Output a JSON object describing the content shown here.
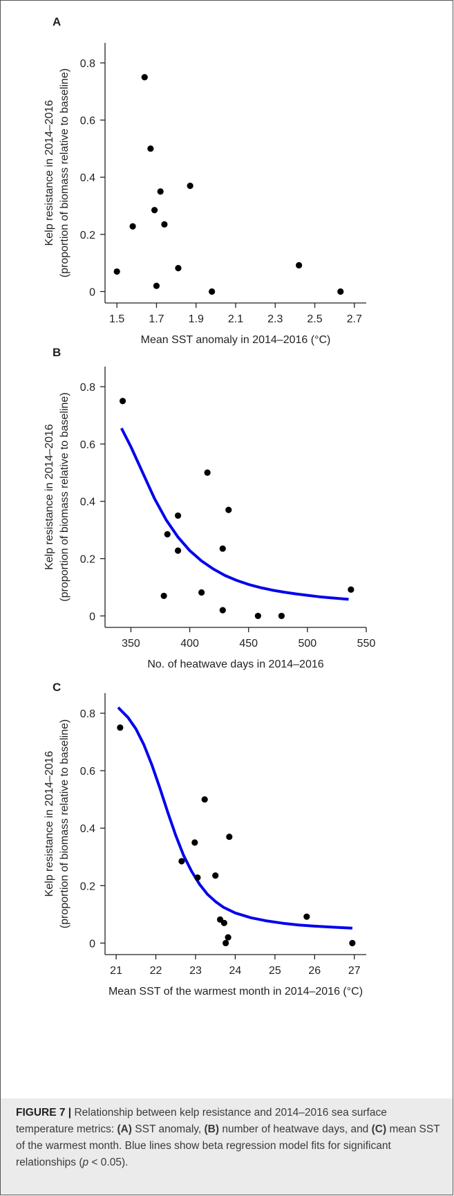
{
  "chart_data": [
    {
      "panel": "A",
      "type": "scatter",
      "xlabel": "Mean SST anomaly in 2014–2016 (°C)",
      "ylabel_lines": [
        "Kelp resistance in 2014–2016",
        "(proportion of biomass relative to baseline)"
      ],
      "xlim": [
        1.44,
        2.76
      ],
      "ylim": [
        -0.04,
        0.87
      ],
      "xticks": [
        1.5,
        1.7,
        1.9,
        2.1,
        2.3,
        2.5,
        2.7
      ],
      "xtick_labels": [
        "1.5",
        "1.7",
        "1.9",
        "2.1",
        "2.3",
        "2.5",
        "2.7"
      ],
      "yticks": [
        0,
        0.2,
        0.4,
        0.6,
        0.8
      ],
      "ytick_labels": [
        "0",
        "0.2",
        "0.4",
        "0.6",
        "0.8"
      ],
      "points": [
        [
          1.64,
          0.75
        ],
        [
          1.67,
          0.5
        ],
        [
          1.72,
          0.35
        ],
        [
          1.87,
          0.37
        ],
        [
          1.69,
          0.285
        ],
        [
          1.58,
          0.228
        ],
        [
          1.74,
          0.235
        ],
        [
          1.5,
          0.07
        ],
        [
          1.81,
          0.082
        ],
        [
          1.7,
          0.02
        ],
        [
          1.98,
          0.0
        ],
        [
          2.42,
          0.092
        ],
        [
          2.63,
          0.0
        ]
      ],
      "fit": null
    },
    {
      "panel": "B",
      "type": "scatter",
      "xlabel": "No. of heatwave days in 2014–2016",
      "ylabel_lines": [
        "Kelp resistance in 2014–2016",
        "(proportion of biomass relative to baseline)"
      ],
      "xlim": [
        328,
        550
      ],
      "ylim": [
        -0.04,
        0.87
      ],
      "xticks": [
        350,
        400,
        450,
        500,
        550
      ],
      "xtick_labels": [
        "350",
        "400",
        "450",
        "500",
        "550"
      ],
      "yticks": [
        0,
        0.2,
        0.4,
        0.6,
        0.8
      ],
      "ytick_labels": [
        "0",
        "0.2",
        "0.4",
        "0.6",
        "0.8"
      ],
      "points": [
        [
          343,
          0.75
        ],
        [
          415,
          0.5
        ],
        [
          433,
          0.37
        ],
        [
          390,
          0.35
        ],
        [
          381,
          0.285
        ],
        [
          390,
          0.228
        ],
        [
          428,
          0.235
        ],
        [
          378,
          0.07
        ],
        [
          410,
          0.082
        ],
        [
          428,
          0.02
        ],
        [
          458,
          0.0
        ],
        [
          478,
          0.0
        ],
        [
          537,
          0.092
        ]
      ],
      "fit": {
        "label": "beta regression model fit",
        "x": [
          342,
          350,
          360,
          370,
          380,
          390,
          400,
          410,
          420,
          430,
          440,
          450,
          460,
          470,
          480,
          490,
          500,
          510,
          520,
          535
        ],
        "y": [
          0.655,
          0.59,
          0.5,
          0.41,
          0.335,
          0.275,
          0.228,
          0.192,
          0.164,
          0.141,
          0.124,
          0.11,
          0.099,
          0.09,
          0.083,
          0.077,
          0.072,
          0.067,
          0.063,
          0.058
        ]
      }
    },
    {
      "panel": "C",
      "type": "scatter",
      "xlabel": "Mean SST of the warmest month in 2014–2016 (°C)",
      "ylabel_lines": [
        "Kelp resistance in 2014–2016",
        "(proportion of biomass relative to baseline)"
      ],
      "xlim": [
        20.72,
        27.3
      ],
      "ylim": [
        -0.04,
        0.87
      ],
      "xticks": [
        21,
        22,
        23,
        24,
        25,
        26,
        27
      ],
      "xtick_labels": [
        "21",
        "22",
        "23",
        "24",
        "25",
        "26",
        "27"
      ],
      "yticks": [
        0,
        0.2,
        0.4,
        0.6,
        0.8
      ],
      "ytick_labels": [
        "0",
        "0.2",
        "0.4",
        "0.6",
        "0.8"
      ],
      "points": [
        [
          21.1,
          0.75
        ],
        [
          23.23,
          0.5
        ],
        [
          23.85,
          0.37
        ],
        [
          22.98,
          0.35
        ],
        [
          22.65,
          0.285
        ],
        [
          23.05,
          0.228
        ],
        [
          23.5,
          0.235
        ],
        [
          23.62,
          0.082
        ],
        [
          23.72,
          0.07
        ],
        [
          23.82,
          0.02
        ],
        [
          23.76,
          0.0
        ],
        [
          25.8,
          0.092
        ],
        [
          26.95,
          0.0
        ]
      ],
      "fit": {
        "label": "beta regression model fit",
        "x": [
          21.05,
          21.3,
          21.5,
          21.7,
          21.9,
          22.1,
          22.3,
          22.5,
          22.7,
          22.9,
          23.1,
          23.3,
          23.5,
          23.7,
          24.0,
          24.4,
          24.8,
          25.2,
          25.6,
          26.0,
          26.5,
          26.95
        ],
        "y": [
          0.82,
          0.785,
          0.745,
          0.69,
          0.62,
          0.54,
          0.455,
          0.375,
          0.305,
          0.25,
          0.205,
          0.17,
          0.145,
          0.125,
          0.105,
          0.088,
          0.077,
          0.069,
          0.063,
          0.059,
          0.055,
          0.052
        ]
      }
    }
  ],
  "caption": {
    "figure_label": "FIGURE 7 |",
    "intro": " Relationship between kelp resistance and 2014–2016 sea surface temperature metrics: ",
    "a_label": "(A)",
    "a_text": " SST anomaly, ",
    "b_label": "(B)",
    "b_text": " number of heatwave days, and ",
    "c_label": "(C)",
    "c_text": " mean SST of the warmest month. Blue lines show beta regression model fits for significant relationships (",
    "p_symbol": "p",
    "p_rest": " < 0.05)."
  }
}
